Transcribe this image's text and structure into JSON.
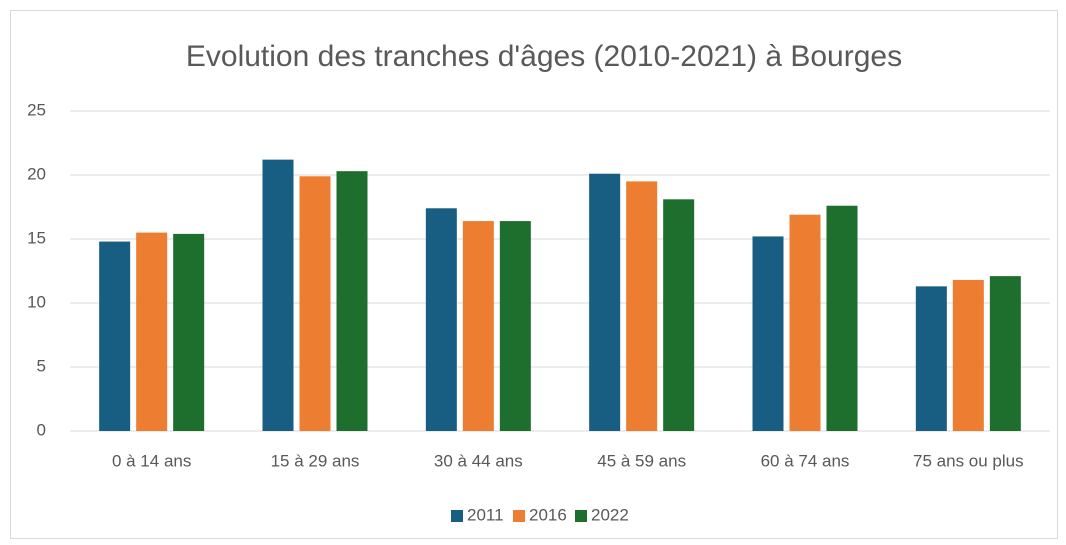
{
  "chart_data": {
    "type": "bar",
    "title": "Evolution des tranches d'âges (2010-2021) à Bourges",
    "categories": [
      "0 à 14 ans",
      "15 à 29 ans",
      "30 à 44 ans",
      "45 à 59 ans",
      "60 à 74 ans",
      "75 ans ou plus"
    ],
    "series": [
      {
        "name": "2011",
        "color": "#175e82",
        "values": [
          14.8,
          21.2,
          17.4,
          20.1,
          15.2,
          11.3
        ]
      },
      {
        "name": "2016",
        "color": "#ed7d31",
        "values": [
          15.5,
          19.9,
          16.4,
          19.5,
          16.9,
          11.8
        ]
      },
      {
        "name": "2022",
        "color": "#1e6e2e",
        "values": [
          15.4,
          20.3,
          16.4,
          18.1,
          17.6,
          12.1
        ]
      }
    ],
    "ylim": [
      0,
      25
    ],
    "yticks": [
      0,
      5,
      10,
      15,
      20,
      25
    ],
    "grid": true,
    "legend": "bottom"
  }
}
